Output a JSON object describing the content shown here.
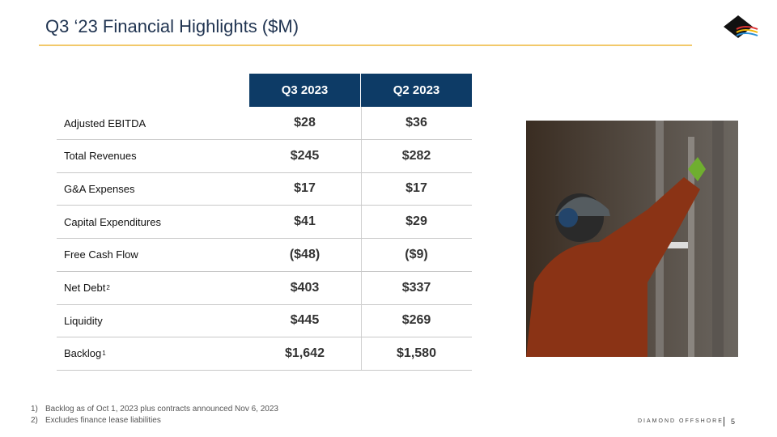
{
  "header": {
    "title": "Q3 ‘23 Financial Highlights ($M)"
  },
  "table": {
    "columns": [
      "Q3 2023",
      "Q2 2023"
    ],
    "rows": [
      {
        "label": "Adjusted EBITDA",
        "values": [
          "$28",
          "$36"
        ]
      },
      {
        "label": "Total Revenues",
        "values": [
          "$245",
          "$282"
        ]
      },
      {
        "label": "G&A Expenses",
        "values": [
          "$17",
          "$17"
        ]
      },
      {
        "label": "Capital Expenditures",
        "values": [
          "$41",
          "$29"
        ]
      },
      {
        "label": "Free Cash Flow",
        "values": [
          "($48)",
          "($9)"
        ]
      },
      {
        "label": "Net Debt",
        "note": "2",
        "values": [
          "$403",
          "$337"
        ]
      },
      {
        "label": "Liquidity",
        "values": [
          "$445",
          "$269"
        ]
      },
      {
        "label": "Backlog",
        "note": "1",
        "values": [
          "$1,642",
          "$1,580"
        ]
      }
    ]
  },
  "footnotes": [
    {
      "marker": "1)",
      "text": "Backlog as of Oct 1, 2023 plus contracts announced Nov 6, 2023"
    },
    {
      "marker": "2)",
      "text": "Excludes finance lease liabilities"
    }
  ],
  "footer": {
    "company": "DIAMOND OFFSHORE",
    "page": "5"
  }
}
